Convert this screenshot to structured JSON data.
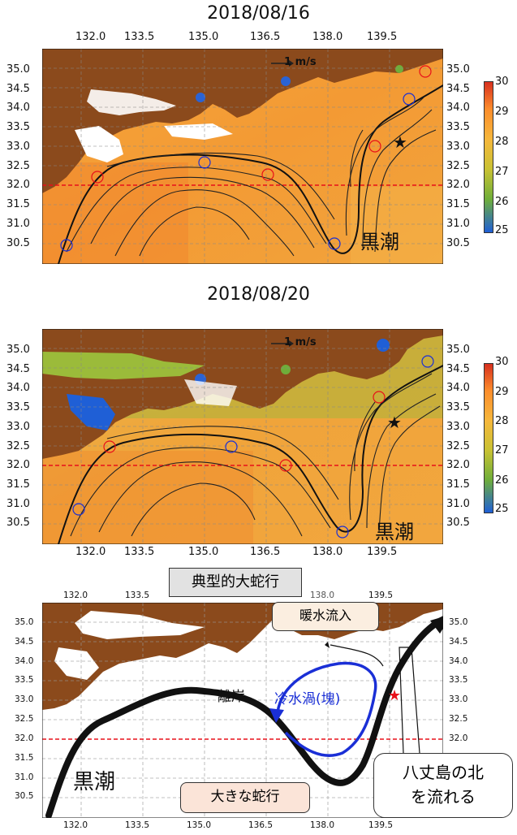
{
  "panels": [
    {
      "title": "2018/08/16",
      "top_lon_labels": [
        "132.0",
        "133.5",
        "135.0",
        "136.5",
        "138.0",
        "139.5"
      ],
      "left_lat_labels": [
        "35.0",
        "34.5",
        "34.0",
        "33.5",
        "33.0",
        "32.5",
        "32.0",
        "31.5",
        "31.0",
        "30.5"
      ],
      "right_lat_labels": [
        "35.0",
        "34.5",
        "34.0",
        "33.5",
        "33.0",
        "32.5",
        "32.0",
        "31.5",
        "31.0",
        "30.5"
      ],
      "scale_label": "1 m/s",
      "current_label": "黒潮"
    },
    {
      "title": "2018/08/20",
      "bottom_lon_labels": [
        "132.0",
        "133.5",
        "135.0",
        "136.5",
        "138.0",
        "139.5"
      ],
      "left_lat_labels": [
        "35.0",
        "34.5",
        "34.0",
        "33.5",
        "33.0",
        "32.5",
        "32.0",
        "31.5",
        "31.0",
        "30.5"
      ],
      "right_lat_labels": [
        "35.0",
        "34.5",
        "34.0",
        "33.5",
        "33.0",
        "32.5",
        "32.0",
        "31.5",
        "31.0",
        "30.5"
      ],
      "scale_label": "1 m/s",
      "current_label": "黒潮"
    }
  ],
  "colorbar": {
    "labels": [
      "30",
      "29",
      "28",
      "27",
      "26",
      "25"
    ],
    "colors": [
      "#d7301f",
      "#fc8d2c",
      "#f6b73c",
      "#c9c234",
      "#6fae3a",
      "#1f5fd6"
    ]
  },
  "schematic": {
    "title": "典型的大蛇行",
    "top_lon_labels": [
      "132.0",
      "133.5",
      "135.0",
      "136.5",
      "138.0",
      "139.5"
    ],
    "bottom_lon_labels": [
      "132.0",
      "133.5",
      "135.0",
      "136.5",
      "138.0",
      "139.5"
    ],
    "lat_labels": [
      "35.0",
      "34.5",
      "34.0",
      "33.5",
      "33.0",
      "32.5",
      "32.0",
      "31.5",
      "31.0",
      "30.5"
    ],
    "labels": {
      "warm_inflow": "暖水流入",
      "offshore": "離岸",
      "cold_eddy": "冷水渦(塊)",
      "kuroshio": "黒潮",
      "big_meander": "大きな蛇行",
      "hachijo_line1": "八丈島の北",
      "hachijo_line2": "を流れる"
    }
  },
  "colors": {
    "land": "#8b4a1c",
    "warm": "#f2a23a",
    "cold_line": "#1a2fd6",
    "ref_line": "#e8101a"
  }
}
